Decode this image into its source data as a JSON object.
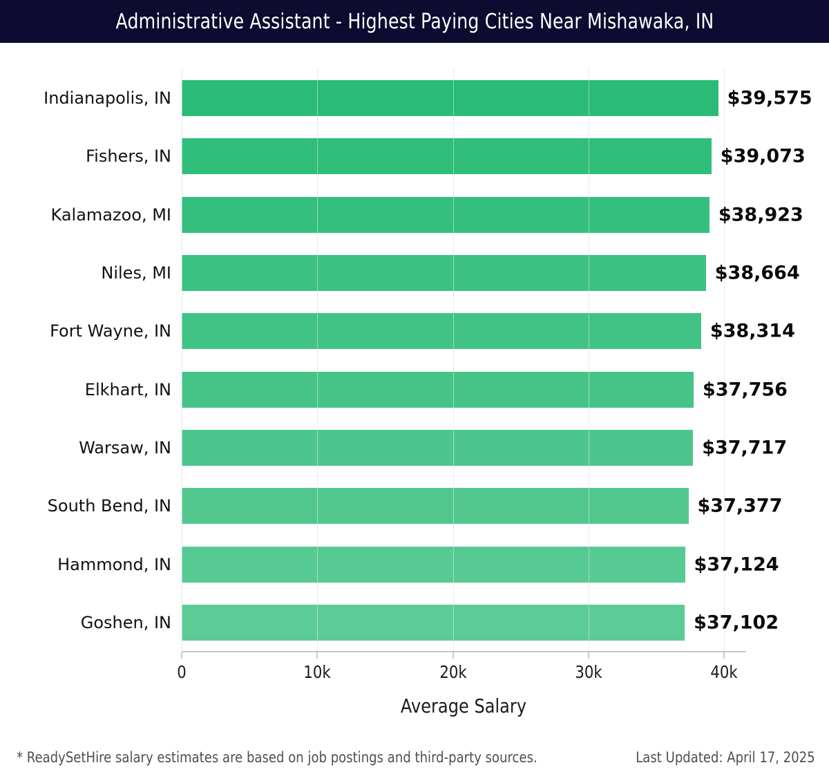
{
  "header": {
    "title": "Administrative Assistant - Highest Paying Cities Near Mishawaka, IN",
    "bg_color": "#0d0b30",
    "text_color": "#ffffff"
  },
  "chart_data": {
    "type": "bar",
    "orientation": "horizontal",
    "title": "Administrative Assistant - Highest Paying Cities Near Mishawaka, IN",
    "categories": [
      "Indianapolis, IN",
      "Fishers, IN",
      "Kalamazoo, MI",
      "Niles, MI",
      "Fort Wayne, IN",
      "Elkhart, IN",
      "Warsaw, IN",
      "South Bend, IN",
      "Hammond, IN",
      "Goshen, IN"
    ],
    "values": [
      39575,
      39073,
      38923,
      38664,
      38314,
      37756,
      37717,
      37377,
      37124,
      37102
    ],
    "value_labels": [
      "$39,575",
      "$39,073",
      "$38,923",
      "$38,664",
      "$38,314",
      "$37,756",
      "$37,717",
      "$37,377",
      "$37,124",
      "$37,102"
    ],
    "xlabel": "Average Salary",
    "x_ticks": [
      "0",
      "10k",
      "20k",
      "30k",
      "40k"
    ],
    "x_tick_values": [
      0,
      10000,
      20000,
      30000,
      40000
    ],
    "xlim": [
      0,
      40000
    ],
    "grid": "vertical",
    "legend": "none",
    "bar_colors": [
      "#2abc77",
      "#30be7a",
      "#35bf7e",
      "#3bc181",
      "#41c385",
      "#46c488",
      "#4cc68c",
      "#52c88f",
      "#57c993",
      "#5dcb96"
    ],
    "gridline_color": "#d8d8d8",
    "axis_line_color": "#c8c8c8",
    "category_label_color": "#111111",
    "value_label_color": "#0a0a0a"
  },
  "footer": {
    "note": "* ReadySetHire salary estimates are based on job postings and third-party sources.",
    "last_updated": "Last Updated: April 17, 2025",
    "text_color": "#4f4f4f"
  }
}
